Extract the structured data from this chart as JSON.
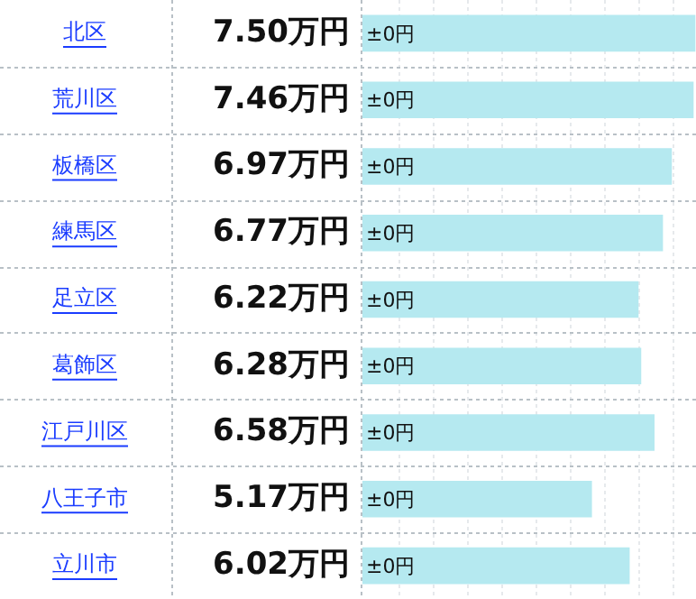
{
  "chart_data": {
    "type": "bar",
    "orientation": "horizontal",
    "categories": [
      "北区",
      "荒川区",
      "板橋区",
      "練馬区",
      "足立区",
      "葛飾区",
      "江戸川区",
      "八王子市",
      "立川市"
    ],
    "values": [
      7.5,
      7.46,
      6.97,
      6.77,
      6.22,
      6.28,
      6.58,
      5.17,
      6.02
    ],
    "color": "#b5e9f0",
    "value_labels": [
      "7.50万円",
      "7.46万円",
      "6.97万円",
      "6.77万円",
      "6.22万円",
      "6.28万円",
      "6.58万円",
      "5.17万円",
      "6.02万円"
    ],
    "annotations": [
      {
        "text": "±0円",
        "y": "北区"
      },
      {
        "text": "±0円",
        "y": "荒川区"
      },
      {
        "text": "±0円",
        "y": "板橋区"
      },
      {
        "text": "±0円",
        "y": "練馬区"
      },
      {
        "text": "±0円",
        "y": "足立区"
      },
      {
        "text": "±0円",
        "y": "葛飾区"
      },
      {
        "text": "±0円",
        "y": "江戸川区"
      },
      {
        "text": "±0円",
        "y": "八王子市"
      },
      {
        "text": "±0円",
        "y": "立川市"
      }
    ]
  }
}
